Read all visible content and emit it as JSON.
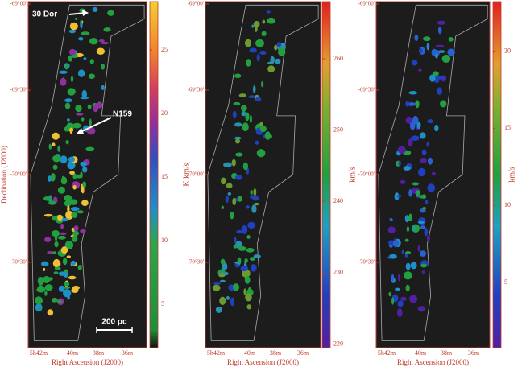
{
  "panels": [
    {
      "xlabel": "Right Ascension (J2000)",
      "ylabel": "Declination (J2000)",
      "xticks": [
        "5h42m",
        "40m",
        "38m",
        "36m"
      ],
      "yticks": [
        "-69°00'",
        "-69°30'",
        "-70°00'",
        "-70°30'"
      ],
      "colorbar": {
        "label": "K km/s",
        "lim": [
          1.6,
          28.8
        ],
        "ticks": [
          5,
          10,
          15,
          20,
          25
        ]
      },
      "annotations": [
        "30 Dor",
        "N159"
      ],
      "scalebar": "200 pc"
    },
    {
      "xlabel": "Right Ascension (J2000)",
      "xticks": [
        "5h42m",
        "40m",
        "38m",
        "36m"
      ],
      "yticks": [
        "-69°00'",
        "-69°30'",
        "-70°00'",
        "-70°30'"
      ],
      "colorbar": {
        "label": "km/s",
        "lim": [
          219.5,
          268
        ],
        "ticks": [
          220,
          230,
          240,
          250,
          260
        ]
      }
    },
    {
      "xlabel": "Right Ascension (J2000)",
      "xticks": [
        "5h42m",
        "40m",
        "38m",
        "36m"
      ],
      "yticks": [
        "-69°00'",
        "-69°30'",
        "-70°00'",
        "-70°30'"
      ],
      "colorbar": {
        "label": "km/s",
        "lim": [
          0.8,
          23.2
        ],
        "ticks": [
          5,
          10,
          15,
          20
        ]
      }
    }
  ]
}
